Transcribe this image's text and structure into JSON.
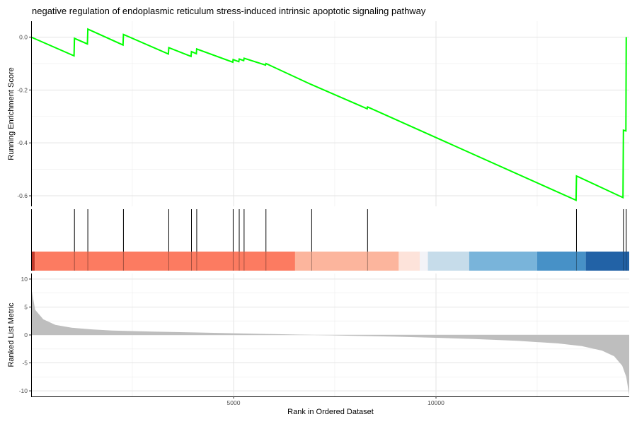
{
  "chart_data": {
    "type": "line",
    "title": "negative regulation of endoplasmic reticulum stress-induced intrinsic apoptotic signaling pathway",
    "xlabel": "Rank in Ordered Dataset",
    "xlim": [
      0,
      14773
    ],
    "x_ticks": [
      5000,
      10000
    ],
    "x_tick_labels": [
      "5000",
      "10000"
    ],
    "grid": true,
    "panels": {
      "enrichment": {
        "ylabel": "Running Enrichment Score",
        "ylim": [
          -0.64,
          0.06
        ],
        "y_ticks": [
          0.0,
          -0.2,
          -0.4,
          -0.6
        ],
        "y_tick_labels": [
          "0.0",
          "-0.2",
          "-0.4",
          "-0.6"
        ],
        "line_color": "#00ff00",
        "points": [
          [
            0,
            0.0
          ],
          [
            1060,
            -0.071
          ],
          [
            1070,
            -0.005
          ],
          [
            1390,
            -0.026
          ],
          [
            1400,
            0.03
          ],
          [
            2270,
            -0.03
          ],
          [
            2280,
            0.01
          ],
          [
            3390,
            -0.064
          ],
          [
            3400,
            -0.04
          ],
          [
            3950,
            -0.073
          ],
          [
            3960,
            -0.055
          ],
          [
            4080,
            -0.063
          ],
          [
            4090,
            -0.045
          ],
          [
            4980,
            -0.095
          ],
          [
            4990,
            -0.085
          ],
          [
            5130,
            -0.093
          ],
          [
            5140,
            -0.083
          ],
          [
            5250,
            -0.089
          ],
          [
            5260,
            -0.08
          ],
          [
            5790,
            -0.106
          ],
          [
            5800,
            -0.1
          ],
          [
            6900,
            -0.178
          ],
          [
            8300,
            -0.271
          ],
          [
            8310,
            -0.264
          ],
          [
            13460,
            -0.617
          ],
          [
            13470,
            -0.525
          ],
          [
            14620,
            -0.607
          ],
          [
            14630,
            -0.352
          ],
          [
            14690,
            -0.355
          ],
          [
            14700,
            0.0
          ]
        ]
      },
      "hits": {
        "positions": [
          1070,
          1400,
          2280,
          3400,
          3960,
          4090,
          4990,
          5140,
          5260,
          5800,
          6930,
          8310,
          13470,
          14630,
          14700
        ]
      },
      "color_bar": {
        "segments": [
          {
            "from": 0,
            "to": 90,
            "color": "#c0392b"
          },
          {
            "from": 90,
            "to": 6520,
            "color": "#fc7b61"
          },
          {
            "from": 6520,
            "to": 9080,
            "color": "#fcb59d"
          },
          {
            "from": 9080,
            "to": 9600,
            "color": "#fde3da"
          },
          {
            "from": 9600,
            "to": 9800,
            "color": "#f3f3f7"
          },
          {
            "from": 9800,
            "to": 10820,
            "color": "#c6dcea"
          },
          {
            "from": 10820,
            "to": 12500,
            "color": "#79b4da"
          },
          {
            "from": 12500,
            "to": 13700,
            "color": "#4791c7"
          },
          {
            "from": 13700,
            "to": 14773,
            "color": "#2262a6"
          }
        ]
      },
      "ranked": {
        "ylabel": "Ranked List Metric",
        "ylim": [
          -11,
          11
        ],
        "y_ticks": [
          10,
          5,
          0,
          -5,
          -10
        ],
        "y_tick_labels": [
          "10",
          "5",
          "0",
          "-5",
          "-10"
        ],
        "fill_color": "#bebebe",
        "points": [
          [
            0,
            8.5
          ],
          [
            100,
            4.5
          ],
          [
            300,
            2.8
          ],
          [
            600,
            1.8
          ],
          [
            1000,
            1.3
          ],
          [
            1500,
            1.0
          ],
          [
            2000,
            0.8
          ],
          [
            3000,
            0.6
          ],
          [
            4000,
            0.45
          ],
          [
            5000,
            0.3
          ],
          [
            6000,
            0.15
          ],
          [
            7000,
            0.0
          ],
          [
            8000,
            -0.15
          ],
          [
            9000,
            -0.3
          ],
          [
            10000,
            -0.5
          ],
          [
            11000,
            -0.75
          ],
          [
            12000,
            -1.05
          ],
          [
            13000,
            -1.5
          ],
          [
            13600,
            -2.0
          ],
          [
            14100,
            -2.8
          ],
          [
            14400,
            -3.8
          ],
          [
            14600,
            -5.5
          ],
          [
            14700,
            -7.5
          ],
          [
            14773,
            -10.8
          ]
        ]
      }
    }
  }
}
